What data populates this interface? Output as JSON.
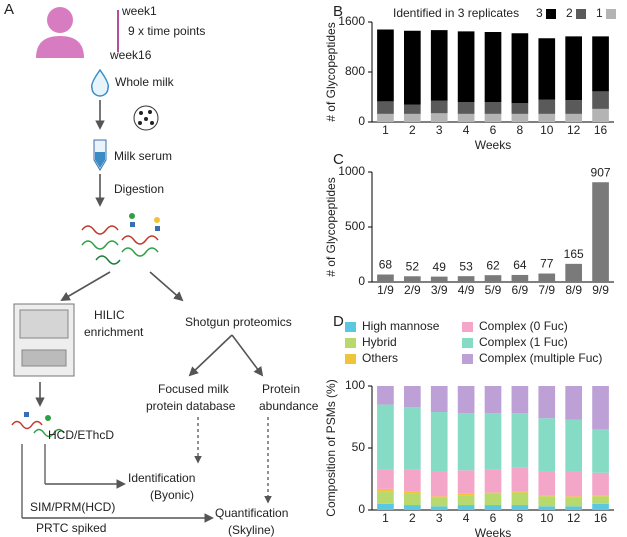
{
  "panel_a": {
    "label": "A",
    "week_start": "week1",
    "time_points": "9 x time points",
    "week_end": "week16",
    "whole_milk": "Whole milk",
    "milk_serum": "Milk serum",
    "digestion": "Digestion",
    "hilic": [
      "HILIC",
      "enrichment"
    ],
    "shotgun": "Shotgun proteomics",
    "focused_db": [
      "Focused milk",
      "protein database"
    ],
    "protein_abundance": [
      "Protein",
      "abundance"
    ],
    "hcd_ethcd": "HCD/EThcD",
    "identification": [
      "Identification",
      "(Byonic)"
    ],
    "sim_prm": "SIM/PRM(HCD)",
    "prtc": "PRTC spiked",
    "quantification": [
      "Quantification",
      "(Skyline)"
    ]
  },
  "chart_data": [
    {
      "type": "bar",
      "panel": "B",
      "stacked": true,
      "legend_position": "top",
      "legend_title": "Identified in 3 replicates",
      "y_label": "# of Glycopeptides",
      "x_label": "Weeks",
      "categories": [
        "1",
        "2",
        "3",
        "4",
        "6",
        "8",
        "10",
        "12",
        "16"
      ],
      "series": [
        {
          "name": "1",
          "color": "#b4b4b4",
          "values": [
            130,
            130,
            140,
            130,
            130,
            130,
            130,
            130,
            210
          ]
        },
        {
          "name": "2",
          "color": "#5a5a5a",
          "values": [
            200,
            150,
            200,
            190,
            190,
            170,
            230,
            220,
            280
          ]
        },
        {
          "name": "3",
          "color": "#000000",
          "values": [
            1150,
            1180,
            1130,
            1130,
            1120,
            1120,
            980,
            1020,
            880
          ]
        }
      ],
      "ylim": [
        0,
        1600
      ],
      "yticks": [
        0,
        800,
        1600
      ]
    },
    {
      "type": "bar",
      "panel": "C",
      "data_labels": true,
      "y_label": "# of Glycopeptides",
      "categories": [
        "1/9",
        "2/9",
        "3/9",
        "4/9",
        "5/9",
        "6/9",
        "7/9",
        "8/9",
        "9/9"
      ],
      "values": [
        68,
        52,
        49,
        53,
        62,
        64,
        77,
        165,
        907
      ],
      "color": "#7a7a7a",
      "ylim": [
        0,
        1000
      ],
      "yticks": [
        0,
        500,
        1000
      ]
    },
    {
      "type": "bar",
      "panel": "D",
      "stacked": true,
      "legend_position": "top",
      "y_label": "Composition of PSMs (%)",
      "x_label": "Weeks",
      "categories": [
        "1",
        "2",
        "3",
        "4",
        "6",
        "8",
        "10",
        "12",
        "16"
      ],
      "series": [
        {
          "name": "High mannose",
          "color": "#5bc8e2",
          "values": [
            5,
            4,
            3,
            4,
            4,
            4,
            3,
            3,
            5
          ]
        },
        {
          "name": "Hybrid",
          "color": "#b7d96e",
          "values": [
            10,
            9,
            7,
            8,
            9,
            10,
            8,
            7,
            6
          ]
        },
        {
          "name": "Others",
          "color": "#f0c43a",
          "values": [
            2,
            2,
            1,
            1,
            1,
            1,
            1,
            1,
            1
          ]
        },
        {
          "name": "Complex (0 Fuc)",
          "color": "#f4a6c9",
          "values": [
            16,
            18,
            20,
            19,
            19,
            19,
            19,
            20,
            18
          ]
        },
        {
          "name": "Complex (1 Fuc)",
          "color": "#86dbc4",
          "values": [
            52,
            50,
            48,
            46,
            45,
            44,
            43,
            42,
            35
          ]
        },
        {
          "name": "Complex (multiple Fuc)",
          "color": "#bca0d6",
          "values": [
            15,
            17,
            21,
            22,
            22,
            22,
            26,
            27,
            35
          ]
        }
      ],
      "ylim": [
        0,
        100
      ],
      "yticks": [
        0,
        50,
        100
      ]
    }
  ]
}
